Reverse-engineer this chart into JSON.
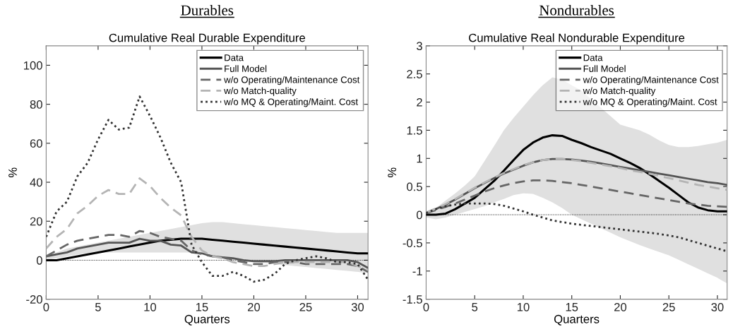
{
  "chart_data": [
    {
      "type": "line",
      "title": "Durables",
      "subtitle": "Cumulative Real Durable Expenditure",
      "xlabel": "Quarters",
      "ylabel": "%",
      "x": [
        0,
        1,
        2,
        3,
        4,
        5,
        6,
        7,
        8,
        9,
        10,
        11,
        12,
        13,
        14,
        15,
        16,
        17,
        18,
        19,
        20,
        21,
        22,
        23,
        24,
        25,
        26,
        27,
        28,
        29,
        30,
        31
      ],
      "xlim": [
        0,
        31
      ],
      "xticks": [
        0,
        5,
        10,
        15,
        20,
        25,
        30
      ],
      "ylim": [
        -20,
        110
      ],
      "yticks": [
        -20,
        0,
        20,
        40,
        60,
        80,
        100
      ],
      "grid": false,
      "legend": "top right",
      "ref_lines": [
        {
          "axis": "y",
          "value": 0,
          "color": "#000000",
          "line_style": "dotted"
        }
      ],
      "series": [
        {
          "name": "Data",
          "color": "#000000",
          "line_style": "solid",
          "values": [
            0,
            0,
            1,
            2,
            3,
            4,
            5,
            6,
            7,
            8,
            9,
            10,
            10.5,
            11,
            11,
            11,
            10.5,
            10,
            9.5,
            9,
            8.5,
            8,
            7.5,
            7,
            6.5,
            6,
            5.5,
            5,
            4.5,
            4,
            3.5,
            3.5
          ],
          "lower": [
            0,
            1,
            2,
            3,
            3.5,
            4,
            4,
            4,
            4,
            4,
            4,
            4,
            4,
            4,
            4,
            3.5,
            2,
            1,
            0,
            -0.5,
            -1,
            -1.5,
            -2,
            -2.5,
            -3,
            -3.5,
            -4,
            -4.5,
            -5,
            -5.5,
            -6,
            -6.5
          ],
          "upper": [
            2,
            4,
            6,
            7,
            8,
            9,
            10,
            11,
            12,
            13,
            14,
            15,
            16,
            17,
            18,
            19,
            19.5,
            19.5,
            19,
            18.5,
            18,
            17.5,
            17,
            16.5,
            16,
            15.5,
            15,
            14.5,
            14,
            14,
            14,
            14
          ]
        },
        {
          "name": "Full Model",
          "color": "#555555",
          "line_style": "solid",
          "values": [
            2,
            3,
            4,
            6,
            7,
            8,
            9,
            9,
            9,
            11,
            10,
            10,
            8,
            7.5,
            4,
            3.5,
            2,
            1.5,
            1,
            0,
            -0.5,
            -0.5,
            -0.5,
            0,
            0,
            0,
            0,
            0,
            0,
            0,
            -1,
            -4
          ]
        },
        {
          "name": "w/o Operating/Maintenance Cost",
          "color": "#666666",
          "line_style": "dashed",
          "values": [
            2,
            5,
            8,
            10,
            11,
            12,
            13,
            13,
            12,
            15,
            14,
            12,
            11,
            10,
            5,
            3,
            2,
            1.5,
            0,
            -1,
            -2,
            -2,
            -1,
            -1,
            -1,
            -2,
            -2,
            -2,
            -2,
            -2,
            -3,
            -6
          ]
        },
        {
          "name": "w/o Match-quality",
          "color": "#b4b4b4",
          "line_style": "dashed",
          "values": [
            6,
            12,
            16,
            24,
            28,
            33,
            36,
            34,
            34,
            42,
            38,
            32,
            27,
            23,
            12,
            5,
            2,
            1,
            -1,
            -2,
            -3,
            -3,
            -2,
            -1,
            -1,
            -1,
            -1,
            -1,
            -1,
            -1,
            -3,
            -5
          ]
        },
        {
          "name": "w/o MQ & Operating/Maint. Cost",
          "color": "#333333",
          "line_style": "dotted",
          "values": [
            12,
            25,
            30,
            43,
            50,
            62,
            72,
            67,
            68,
            84,
            74,
            63,
            50,
            40,
            8,
            -1,
            -8,
            -8,
            -6,
            -8,
            -11,
            -10,
            -7,
            -2,
            0,
            1,
            2,
            1,
            -1,
            -1,
            -2,
            -10
          ]
        }
      ]
    },
    {
      "type": "line",
      "title": "Nondurables",
      "subtitle": "Cumulative Real Nondurable Expenditure",
      "xlabel": "Quarters",
      "ylabel": "%",
      "x": [
        0,
        1,
        2,
        3,
        4,
        5,
        6,
        7,
        8,
        9,
        10,
        11,
        12,
        13,
        14,
        15,
        16,
        17,
        18,
        19,
        20,
        21,
        22,
        23,
        24,
        25,
        26,
        27,
        28,
        29,
        30,
        31
      ],
      "xlim": [
        0,
        31
      ],
      "xticks": [
        0,
        5,
        10,
        15,
        20,
        25,
        30
      ],
      "ylim": [
        -1.5,
        3
      ],
      "yticks": [
        -1.5,
        -1,
        -0.5,
        0,
        0.5,
        1,
        1.5,
        2,
        2.5,
        3
      ],
      "grid": false,
      "legend": "top right",
      "ref_lines": [
        {
          "axis": "y",
          "value": 0,
          "color": "#000000",
          "line_style": "dotted"
        }
      ],
      "series": [
        {
          "name": "Data",
          "color": "#000000",
          "line_style": "solid",
          "values": [
            0,
            0,
            0.02,
            0.1,
            0.2,
            0.3,
            0.45,
            0.6,
            0.78,
            0.97,
            1.15,
            1.28,
            1.37,
            1.41,
            1.4,
            1.33,
            1.27,
            1.2,
            1.14,
            1.08,
            1.0,
            0.92,
            0.83,
            0.72,
            0.6,
            0.48,
            0.35,
            0.22,
            0.13,
            0.08,
            0.06,
            0.06
          ],
          "lower": [
            -0.05,
            -0.08,
            -0.05,
            0,
            0.05,
            0.1,
            0.15,
            0.22,
            0.28,
            0.35,
            0.38,
            0.37,
            0.3,
            0.22,
            0.12,
            0,
            -0.08,
            -0.16,
            -0.24,
            -0.32,
            -0.4,
            -0.47,
            -0.54,
            -0.6,
            -0.66,
            -0.72,
            -0.8,
            -0.88,
            -0.96,
            -1.04,
            -1.12,
            -1.22
          ],
          "upper": [
            0.05,
            0.12,
            0.25,
            0.38,
            0.52,
            0.68,
            0.95,
            1.22,
            1.5,
            1.72,
            1.92,
            2.12,
            2.3,
            2.44,
            2.4,
            2.3,
            2.2,
            2.05,
            1.9,
            1.75,
            1.6,
            1.55,
            1.5,
            1.42,
            1.32,
            1.24,
            1.2,
            1.2,
            1.22,
            1.25,
            1.28,
            1.33
          ]
        },
        {
          "name": "Full Model",
          "color": "#555555",
          "line_style": "solid",
          "values": [
            0.03,
            0.1,
            0.18,
            0.27,
            0.37,
            0.47,
            0.56,
            0.65,
            0.73,
            0.8,
            0.87,
            0.93,
            0.97,
            0.99,
            0.99,
            0.98,
            0.96,
            0.94,
            0.91,
            0.88,
            0.85,
            0.82,
            0.79,
            0.76,
            0.73,
            0.7,
            0.67,
            0.64,
            0.61,
            0.58,
            0.56,
            0.53
          ]
        },
        {
          "name": "w/o Operating/Maintenance Cost",
          "color": "#666666",
          "line_style": "dashed",
          "values": [
            0.03,
            0.08,
            0.14,
            0.2,
            0.27,
            0.34,
            0.41,
            0.47,
            0.52,
            0.56,
            0.59,
            0.61,
            0.61,
            0.6,
            0.58,
            0.56,
            0.53,
            0.5,
            0.47,
            0.44,
            0.41,
            0.38,
            0.35,
            0.32,
            0.29,
            0.26,
            0.23,
            0.2,
            0.18,
            0.16,
            0.15,
            0.14
          ]
        },
        {
          "name": "w/o Match-quality",
          "color": "#b4b4b4",
          "line_style": "dashed",
          "values": [
            0.04,
            0.11,
            0.19,
            0.28,
            0.38,
            0.48,
            0.57,
            0.66,
            0.74,
            0.81,
            0.88,
            0.93,
            0.97,
            0.99,
            0.99,
            0.97,
            0.95,
            0.92,
            0.89,
            0.86,
            0.83,
            0.79,
            0.76,
            0.73,
            0.69,
            0.65,
            0.61,
            0.57,
            0.53,
            0.5,
            0.47,
            0.44
          ]
        },
        {
          "name": "w/o MQ & Operating/Maint. Cost",
          "color": "#333333",
          "line_style": "dotted",
          "values": [
            0.03,
            0.1,
            0.15,
            0.18,
            0.2,
            0.2,
            0.2,
            0.19,
            0.16,
            0.11,
            0.06,
            0,
            -0.05,
            -0.1,
            -0.13,
            -0.16,
            -0.18,
            -0.2,
            -0.22,
            -0.24,
            -0.26,
            -0.28,
            -0.3,
            -0.32,
            -0.34,
            -0.37,
            -0.4,
            -0.45,
            -0.5,
            -0.55,
            -0.6,
            -0.65
          ]
        }
      ]
    }
  ]
}
